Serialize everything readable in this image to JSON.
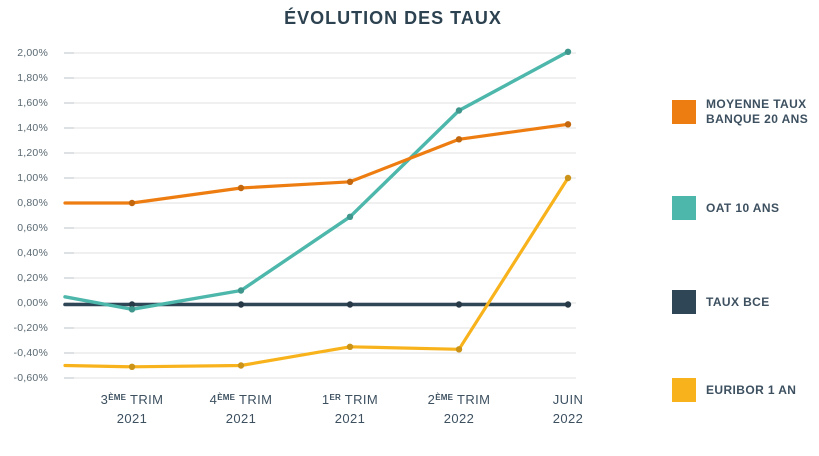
{
  "title": "ÉVOLUTION DES TAUX",
  "chart_data": {
    "type": "line",
    "title": "ÉVOLUTION DES TAUX",
    "x_categories": [
      "3ème trim 2021",
      "4ème trim 2021",
      "1er trim 2021",
      "2ème trim 2022",
      "juin 2022"
    ],
    "x_labels": [
      {
        "num": "3",
        "sup": "ÈME",
        "rest": " TRIM",
        "year": "2021"
      },
      {
        "num": "4",
        "sup": "ÈME",
        "rest": " TRIM",
        "year": "2021"
      },
      {
        "num": "1",
        "sup": "ER",
        "rest": " TRIM",
        "year": "2021"
      },
      {
        "num": "2",
        "sup": "ÈME",
        "rest": " TRIM",
        "year": "2022"
      },
      {
        "num": "JUIN",
        "sup": "",
        "rest": "",
        "year": "2022"
      }
    ],
    "y_axis": {
      "tick_labels": [
        "2,00%",
        "1,80%",
        "1,60%",
        "1,40%",
        "1,20%",
        "1,00%",
        "0,80%",
        "0,60%",
        "0,40%",
        "0,20%",
        "0,00%",
        "-0,20%",
        "-0,40%",
        "-0,60%"
      ],
      "min": -0.6,
      "max": 2.0,
      "step": 0.2,
      "unit": "%"
    },
    "series": [
      {
        "name": "MOYENNE TAUX BANQUE 20 ANS",
        "color": "#ee7d11",
        "edge_start_value": 0.8,
        "values": [
          0.8,
          0.92,
          0.97,
          1.31,
          1.43
        ]
      },
      {
        "name": "OAT 10 ANS",
        "color": "#4db7ab",
        "edge_start_value": 0.05,
        "values": [
          -0.05,
          0.1,
          0.69,
          1.54,
          2.01
        ]
      },
      {
        "name": "TAUX BCE",
        "color": "#2f4656",
        "edge_start_value": 0.0,
        "values": [
          0.0,
          0.0,
          0.0,
          0.0,
          0.0
        ]
      },
      {
        "name": "EURIBOR 1 AN",
        "color": "#f8b31c",
        "edge_start_value": -0.5,
        "values": [
          -0.51,
          -0.5,
          -0.35,
          -0.37,
          1.0
        ]
      }
    ],
    "grid": "horizontal-only",
    "legend_position": "right",
    "colors": {
      "grid": "#e0e1e2",
      "tick": "#bec3c7",
      "title_text": "#2d4250",
      "axis_text": "#5a6973",
      "label_text": "#3d5060"
    }
  }
}
